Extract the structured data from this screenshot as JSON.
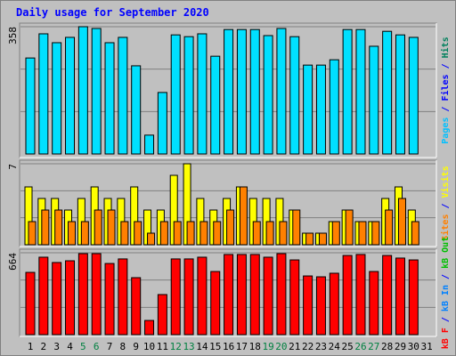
{
  "chart_data": {
    "type": "bar",
    "title": "Daily usage for September 2020",
    "categories": [
      "1",
      "2",
      "3",
      "4",
      "5",
      "6",
      "7",
      "8",
      "9",
      "10",
      "11",
      "12",
      "13",
      "14",
      "15",
      "16",
      "17",
      "18",
      "19",
      "20",
      "21",
      "22",
      "23",
      "24",
      "25",
      "26",
      "27",
      "28",
      "29",
      "30",
      "31"
    ],
    "category_colors": [
      "#000000",
      "#000000",
      "#000000",
      "#000000",
      "#008040",
      "#008040",
      "#000000",
      "#000000",
      "#000000",
      "#000000",
      "#000000",
      "#008040",
      "#008040",
      "#000000",
      "#000000",
      "#000000",
      "#000000",
      "#000000",
      "#008040",
      "#008040",
      "#000000",
      "#000000",
      "#000000",
      "#000000",
      "#000000",
      "#008040",
      "#008040",
      "#000000",
      "#000000",
      "#000000",
      "#000000"
    ],
    "panels": [
      {
        "ylim": [
          0,
          358
        ],
        "yticks": [
          358
        ],
        "side_labels": [
          {
            "text": "Pages",
            "color": "#00c0ff"
          },
          {
            "text": " / ",
            "color": "#0000ff"
          },
          {
            "text": "Files",
            "color": "#0000ff"
          },
          {
            "text": " / ",
            "color": "#0000ff"
          },
          {
            "text": "Hits",
            "color": "#00805c"
          }
        ],
        "series": [
          {
            "name": "Pages",
            "color": "#00e0ff",
            "values": [
              270,
              338,
              313,
              328,
              358,
              353,
              313,
              328,
              248,
              53,
              173,
              335,
              330,
              338,
              275,
              350,
              350,
              350,
              333,
              353,
              330,
              250,
              250,
              265,
              350,
              350,
              303,
              345,
              335,
              328,
              null
            ]
          }
        ]
      },
      {
        "ylim": [
          0,
          7
        ],
        "yticks": [
          7
        ],
        "side_labels": [
          {
            "text": "Sites",
            "color": "#ff8000"
          },
          {
            "text": " / ",
            "color": "#0000ff"
          },
          {
            "text": "Visits",
            "color": "#ffff00"
          }
        ],
        "series": [
          {
            "name": "Visits",
            "color": "#ffff00",
            "values": [
              5,
              4,
              4,
              3,
              4,
              5,
              4,
              4,
              5,
              3,
              3,
              6,
              7,
              4,
              3,
              4,
              5,
              4,
              4,
              4,
              3,
              1,
              1,
              2,
              3,
              2,
              2,
              4,
              5,
              3,
              null
            ]
          },
          {
            "name": "Sites",
            "color": "#ff8000",
            "values": [
              2,
              3,
              3,
              2,
              2,
              3,
              3,
              2,
              2,
              1,
              2,
              2,
              2,
              2,
              2,
              3,
              5,
              2,
              2,
              2,
              3,
              1,
              1,
              2,
              3,
              2,
              2,
              3,
              4,
              2,
              null
            ]
          }
        ]
      },
      {
        "ylim": [
          0,
          664
        ],
        "yticks": [
          664
        ],
        "side_labels": [
          {
            "text": "kB F",
            "color": "#ff0000"
          },
          {
            "text": " / ",
            "color": "#0000ff"
          },
          {
            "text": "kB In",
            "color": "#0080ff"
          },
          {
            "text": " / ",
            "color": "#0000ff"
          },
          {
            "text": "kB Out",
            "color": "#00c000"
          }
        ],
        "series": [
          {
            "name": "kB F",
            "color": "#ff0000",
            "values": [
              505,
              628,
              585,
              599,
              657,
              657,
              577,
              614,
              462,
              115,
              325,
              614,
              614,
              628,
              512,
              650,
              650,
              650,
              628,
              657,
              606,
              476,
              469,
              498,
              642,
              650,
              512,
              642,
              621,
              606,
              null
            ]
          }
        ]
      }
    ]
  }
}
